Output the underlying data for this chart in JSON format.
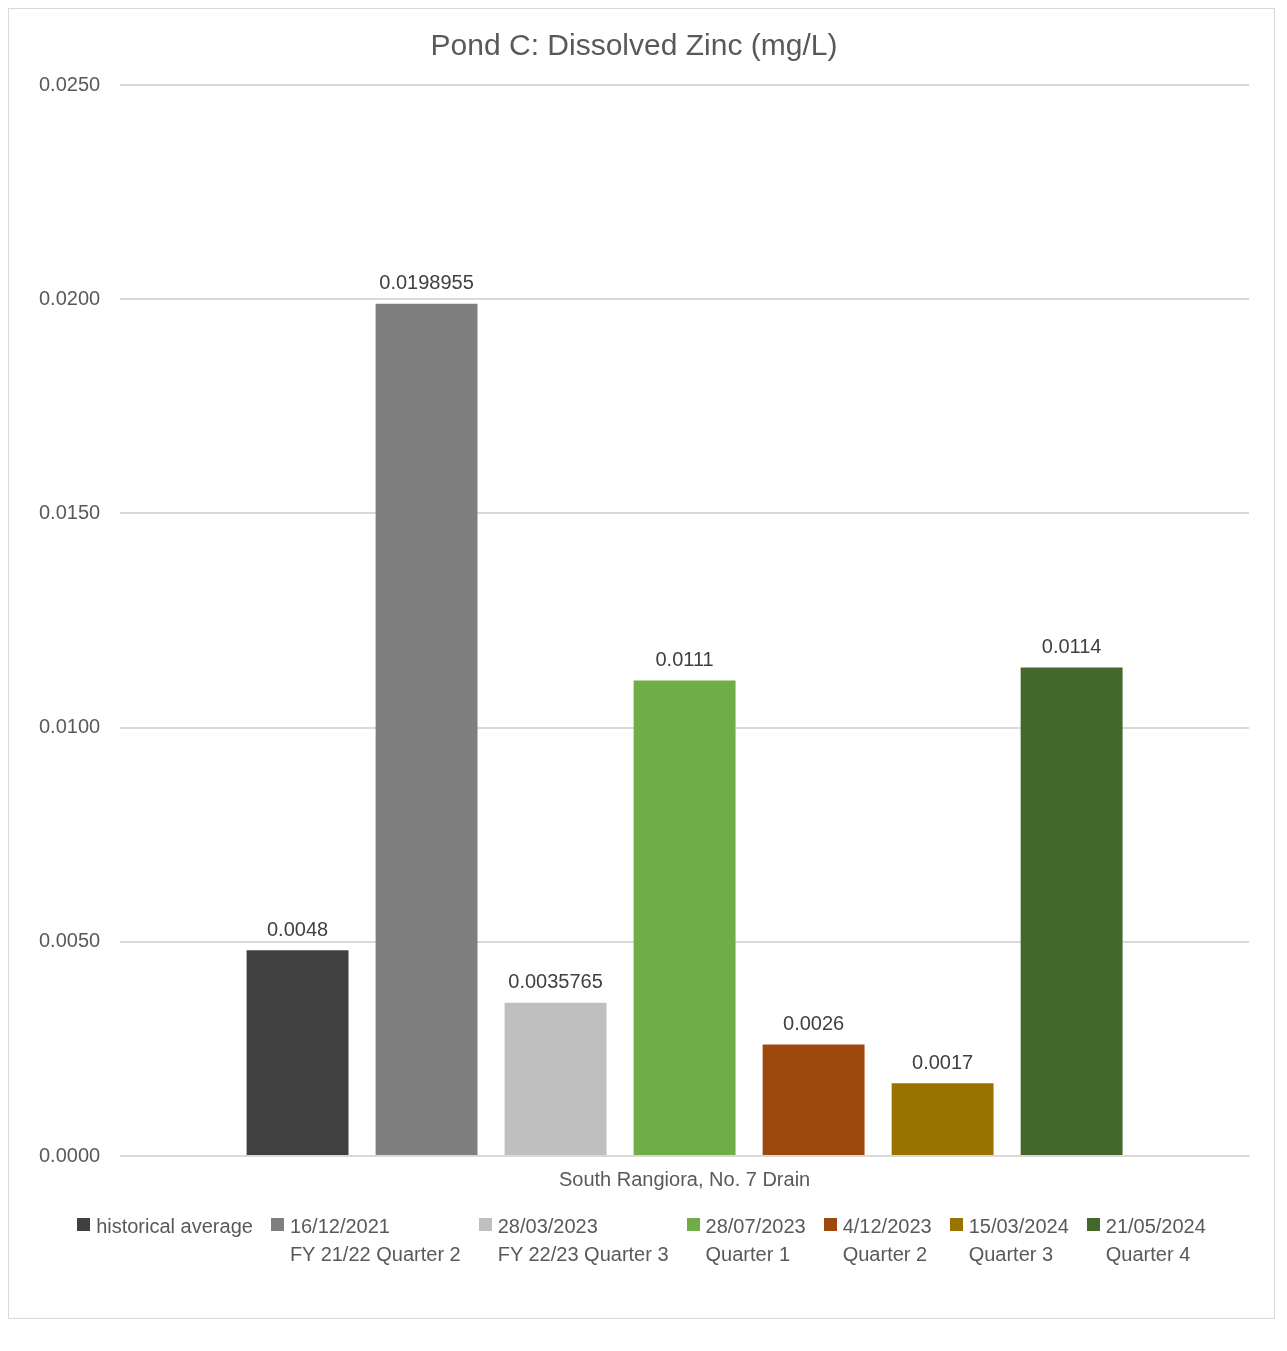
{
  "chart_data": {
    "type": "bar",
    "title": "Pond C: Dissolved Zinc (mg/L)",
    "categories": [
      "South Rangiora, No. 7 Drain"
    ],
    "series": [
      {
        "name": "historical average",
        "color": "#404040",
        "values": [
          0.0048
        ]
      },
      {
        "name": "16/12/2021\nFY 21/22 Quarter 2",
        "color": "#7f7f7f",
        "values": [
          0.0198955
        ]
      },
      {
        "name": "28/03/2023\nFY 22/23 Quarter 3",
        "color": "#bfbfbf",
        "values": [
          0.0035765
        ]
      },
      {
        "name": "28/07/2023\nQuarter 1",
        "color": "#70ad47",
        "values": [
          0.0111
        ]
      },
      {
        "name": "4/12/2023\nQuarter 2",
        "color": "#9e480e",
        "values": [
          0.0026
        ]
      },
      {
        "name": "15/03/2024\nQuarter 3",
        "color": "#997300",
        "values": [
          0.0017
        ]
      },
      {
        "name": "21/05/2024\nQuarter 4",
        "color": "#43682b",
        "values": [
          0.0114
        ]
      }
    ],
    "ylim": [
      0,
      0.025
    ],
    "yticks": [
      {
        "value": 0,
        "label": "0.0000"
      },
      {
        "value": 0.005,
        "label": "0.0050"
      },
      {
        "value": 0.01,
        "label": "0.0100"
      },
      {
        "value": 0.015,
        "label": "0.0150"
      },
      {
        "value": 0.02,
        "label": "0.0200"
      },
      {
        "value": 0.025,
        "label": "0.0250"
      }
    ],
    "grid": "y",
    "legend": "bottom",
    "data_labels": true
  }
}
